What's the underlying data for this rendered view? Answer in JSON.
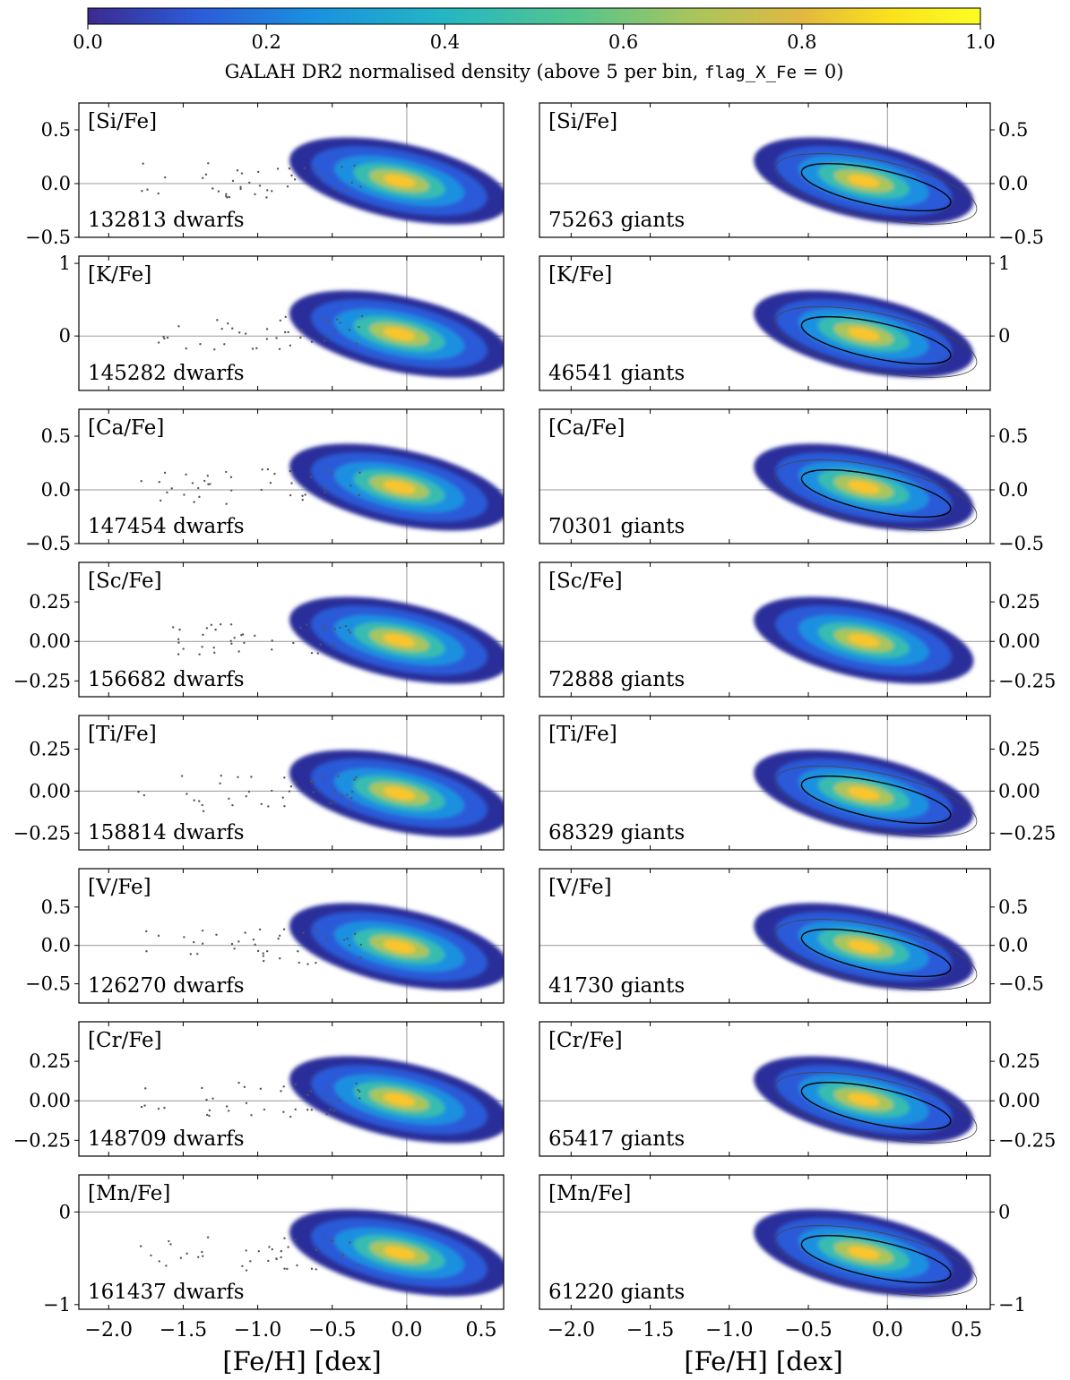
{
  "figure": {
    "colorbar": {
      "label_prefix": "GALAH DR2 normalised density (above 5 per bin, ",
      "label_code": "flag_X_Fe",
      "label_suffix": " = 0)",
      "ticks": [
        "0.0",
        "0.2",
        "0.4",
        "0.6",
        "0.8",
        "1.0"
      ],
      "range": [
        0,
        1
      ],
      "colormap": [
        "#3b2a8f",
        "#2c5ad8",
        "#1a90e0",
        "#23b7c3",
        "#56c58c",
        "#a9c55c",
        "#e2b840",
        "#fbe21c",
        "#fbfd24"
      ]
    },
    "xlabel": "[Fe/H] [dex]"
  },
  "chart_data": [
    {
      "type": "heatmap",
      "element": "[Si/Fe]",
      "sample": "dwarfs",
      "count_label": "132813 dwarfs",
      "side": "left",
      "xlim": [
        -2.2,
        0.65
      ],
      "ylim": [
        -0.5,
        0.75
      ],
      "yticks": [
        "0.5",
        "0.0",
        "−0.5"
      ],
      "ytick_values": [
        0.5,
        0.0,
        -0.5
      ],
      "contours": false
    },
    {
      "type": "heatmap",
      "element": "[Si/Fe]",
      "sample": "giants",
      "count_label": "75263 giants",
      "side": "right",
      "xlim": [
        -2.2,
        0.65
      ],
      "ylim": [
        -0.5,
        0.75
      ],
      "yticks": [
        "0.5",
        "0.0",
        "−0.5"
      ],
      "ytick_values": [
        0.5,
        0.0,
        -0.5
      ],
      "contours": true
    },
    {
      "type": "heatmap",
      "element": "[K/Fe]",
      "sample": "dwarfs",
      "count_label": "145282 dwarfs",
      "side": "left",
      "xlim": [
        -2.2,
        0.65
      ],
      "ylim": [
        -0.75,
        1.1
      ],
      "yticks": [
        "1",
        "0"
      ],
      "ytick_values": [
        1,
        0
      ],
      "contours": false
    },
    {
      "type": "heatmap",
      "element": "[K/Fe]",
      "sample": "giants",
      "count_label": "46541 giants",
      "side": "right",
      "xlim": [
        -2.2,
        0.65
      ],
      "ylim": [
        -0.75,
        1.1
      ],
      "yticks": [
        "1",
        "0"
      ],
      "ytick_values": [
        1,
        0
      ],
      "contours": true
    },
    {
      "type": "heatmap",
      "element": "[Ca/Fe]",
      "sample": "dwarfs",
      "count_label": "147454 dwarfs",
      "side": "left",
      "xlim": [
        -2.2,
        0.65
      ],
      "ylim": [
        -0.5,
        0.75
      ],
      "yticks": [
        "0.5",
        "0.0",
        "−0.5"
      ],
      "ytick_values": [
        0.5,
        0.0,
        -0.5
      ],
      "contours": false
    },
    {
      "type": "heatmap",
      "element": "[Ca/Fe]",
      "sample": "giants",
      "count_label": "70301 giants",
      "side": "right",
      "xlim": [
        -2.2,
        0.65
      ],
      "ylim": [
        -0.5,
        0.75
      ],
      "yticks": [
        "0.5",
        "0.0",
        "−0.5"
      ],
      "ytick_values": [
        0.5,
        0.0,
        -0.5
      ],
      "contours": true
    },
    {
      "type": "heatmap",
      "element": "[Sc/Fe]",
      "sample": "dwarfs",
      "count_label": "156682 dwarfs",
      "side": "left",
      "xlim": [
        -2.2,
        0.65
      ],
      "ylim": [
        -0.35,
        0.5
      ],
      "yticks": [
        "0.25",
        "0.00",
        "−0.25"
      ],
      "ytick_values": [
        0.25,
        0.0,
        -0.25
      ],
      "contours": false
    },
    {
      "type": "heatmap",
      "element": "[Sc/Fe]",
      "sample": "giants",
      "count_label": "72888 giants",
      "side": "right",
      "xlim": [
        -2.2,
        0.65
      ],
      "ylim": [
        -0.35,
        0.5
      ],
      "yticks": [
        "0.25",
        "0.00",
        "−0.25"
      ],
      "ytick_values": [
        0.25,
        0.0,
        -0.25
      ],
      "contours": false
    },
    {
      "type": "heatmap",
      "element": "[Ti/Fe]",
      "sample": "dwarfs",
      "count_label": "158814 dwarfs",
      "side": "left",
      "xlim": [
        -2.2,
        0.65
      ],
      "ylim": [
        -0.35,
        0.45
      ],
      "yticks": [
        "0.25",
        "0.00",
        "−0.25"
      ],
      "ytick_values": [
        0.25,
        0.0,
        -0.25
      ],
      "contours": false
    },
    {
      "type": "heatmap",
      "element": "[Ti/Fe]",
      "sample": "giants",
      "count_label": "68329 giants",
      "side": "right",
      "xlim": [
        -2.2,
        0.65
      ],
      "ylim": [
        -0.35,
        0.45
      ],
      "yticks": [
        "0.25",
        "0.00",
        "−0.25"
      ],
      "ytick_values": [
        0.25,
        0.0,
        -0.25
      ],
      "contours": true
    },
    {
      "type": "heatmap",
      "element": "[V/Fe]",
      "sample": "dwarfs",
      "count_label": "126270 dwarfs",
      "side": "left",
      "xlim": [
        -2.2,
        0.65
      ],
      "ylim": [
        -0.75,
        1.0
      ],
      "yticks": [
        "0.5",
        "0.0",
        "−0.5"
      ],
      "ytick_values": [
        0.5,
        0.0,
        -0.5
      ],
      "contours": false
    },
    {
      "type": "heatmap",
      "element": "[V/Fe]",
      "sample": "giants",
      "count_label": "41730 giants",
      "side": "right",
      "xlim": [
        -2.2,
        0.65
      ],
      "ylim": [
        -0.75,
        1.0
      ],
      "yticks": [
        "0.5",
        "0.0",
        "−0.5"
      ],
      "ytick_values": [
        0.5,
        0.0,
        -0.5
      ],
      "contours": true
    },
    {
      "type": "heatmap",
      "element": "[Cr/Fe]",
      "sample": "dwarfs",
      "count_label": "148709 dwarfs",
      "side": "left",
      "xlim": [
        -2.2,
        0.65
      ],
      "ylim": [
        -0.35,
        0.5
      ],
      "yticks": [
        "0.25",
        "0.00",
        "−0.25"
      ],
      "ytick_values": [
        0.25,
        0.0,
        -0.25
      ],
      "contours": false
    },
    {
      "type": "heatmap",
      "element": "[Cr/Fe]",
      "sample": "giants",
      "count_label": "65417 giants",
      "side": "right",
      "xlim": [
        -2.2,
        0.65
      ],
      "ylim": [
        -0.35,
        0.5
      ],
      "yticks": [
        "0.25",
        "0.00",
        "−0.25"
      ],
      "ytick_values": [
        0.25,
        0.0,
        -0.25
      ],
      "contours": true
    },
    {
      "type": "heatmap",
      "element": "[Mn/Fe]",
      "sample": "dwarfs",
      "count_label": "161437 dwarfs",
      "side": "left",
      "xlim": [
        -2.2,
        0.65
      ],
      "ylim": [
        -1.05,
        0.4
      ],
      "yticks": [
        "0",
        "−1"
      ],
      "ytick_values": [
        0,
        -1
      ],
      "contours": false
    },
    {
      "type": "heatmap",
      "element": "[Mn/Fe]",
      "sample": "giants",
      "count_label": "61220 giants",
      "side": "right",
      "xlim": [
        -2.2,
        0.65
      ],
      "ylim": [
        -1.05,
        0.4
      ],
      "yticks": [
        "0",
        "−1"
      ],
      "ytick_values": [
        0,
        -1
      ],
      "contours": true
    }
  ],
  "xaxis": {
    "ticks": [
      "−2.0",
      "−1.5",
      "−1.0",
      "−0.5",
      "0.0",
      "0.5"
    ],
    "tick_values": [
      -2.0,
      -1.5,
      -1.0,
      -0.5,
      0.0,
      0.5
    ],
    "label": "[Fe/H] [dex]"
  }
}
